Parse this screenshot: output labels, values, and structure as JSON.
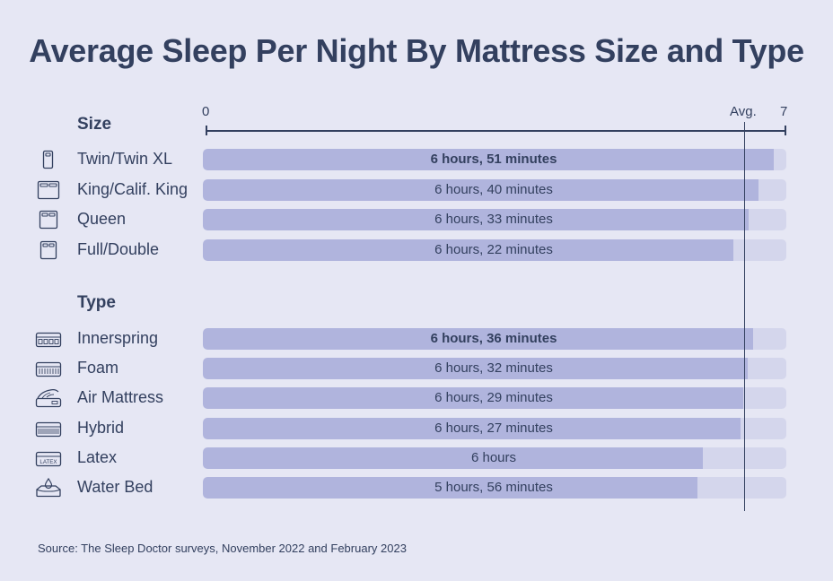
{
  "title": "Average Sleep Per Night By Mattress Size and Type",
  "source": "Source: The Sleep Doctor surveys, November 2022 and February 2023",
  "colors": {
    "bar": "#b0b4dd",
    "track": "#d4d6ec",
    "text": "#33405f",
    "background": "#e6e7f4"
  },
  "chart_data": {
    "type": "bar",
    "orientation": "horizontal",
    "title": "Average Sleep Per Night By Mattress Size and Type",
    "units": "hours",
    "xlim": [
      0,
      7
    ],
    "axis_ticks": [
      "0",
      "Avg.",
      "7"
    ],
    "average_marker_label": "Avg.",
    "average_value": 6.5,
    "groups": [
      {
        "name": "Size",
        "categories": [
          {
            "label": "Twin/Twin XL",
            "value": 6.85,
            "display": "6 hours, 51 minutes",
            "bold": true,
            "icon": "twin-bed-icon"
          },
          {
            "label": "King/Calif. King",
            "value": 6.667,
            "display": "6 hours, 40 minutes",
            "bold": false,
            "icon": "king-bed-icon"
          },
          {
            "label": "Queen",
            "value": 6.55,
            "display": "6 hours, 33 minutes",
            "bold": false,
            "icon": "queen-bed-icon"
          },
          {
            "label": "Full/Double",
            "value": 6.367,
            "display": "6 hours, 22 minutes",
            "bold": false,
            "icon": "full-bed-icon"
          }
        ]
      },
      {
        "name": "Type",
        "categories": [
          {
            "label": "Innerspring",
            "value": 6.6,
            "display": "6 hours, 36 minutes",
            "bold": true,
            "icon": "innerspring-mattress-icon"
          },
          {
            "label": "Foam",
            "value": 6.533,
            "display": "6 hours, 32 minutes",
            "bold": false,
            "icon": "foam-mattress-icon"
          },
          {
            "label": "Air Mattress",
            "value": 6.483,
            "display": "6 hours, 29 minutes",
            "bold": false,
            "icon": "air-mattress-icon"
          },
          {
            "label": "Hybrid",
            "value": 6.45,
            "display": "6 hours, 27 minutes",
            "bold": false,
            "icon": "hybrid-mattress-icon"
          },
          {
            "label": "Latex",
            "value": 6.0,
            "display": "6 hours",
            "bold": false,
            "icon": "latex-mattress-icon",
            "icon_text": "LATEX"
          },
          {
            "label": "Water Bed",
            "value": 5.933,
            "display": "5 hours, 56 minutes",
            "bold": false,
            "icon": "water-bed-icon"
          }
        ]
      }
    ]
  }
}
